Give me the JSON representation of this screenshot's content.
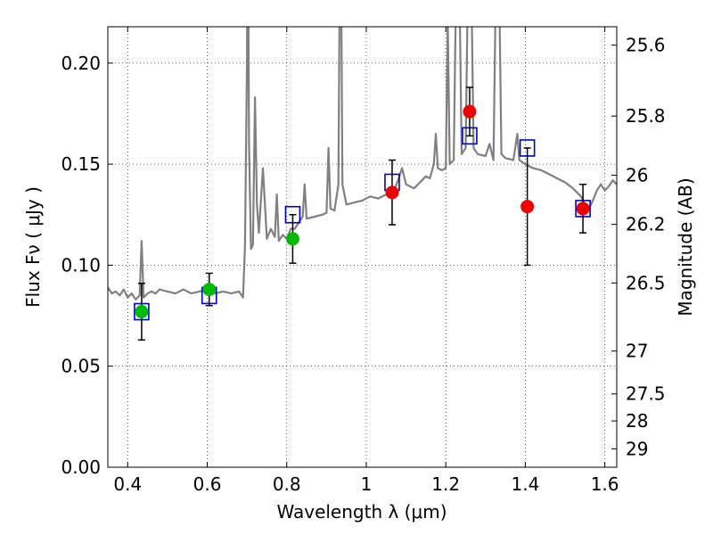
{
  "chart_data": {
    "type": "scatter",
    "xlabel": "Wavelength  λ (μm)",
    "ylabel": "Flux  Fν  ( μJy )",
    "y2label": "Magnitude (AB)",
    "xlim": [
      0.35,
      1.63
    ],
    "ylim": [
      0.0,
      0.218
    ],
    "grid": true,
    "x_ticks": [
      0.4,
      0.6,
      0.8,
      1.0,
      1.2,
      1.4,
      1.6
    ],
    "x_tick_labels": [
      "0.4",
      "0.6",
      "0.8",
      "1",
      "1.2",
      "1.4",
      "1.6"
    ],
    "y_ticks": [
      0.0,
      0.05,
      0.1,
      0.15,
      0.2
    ],
    "y_tick_labels": [
      "0.00",
      "0.05",
      "0.10",
      "0.15",
      "0.20"
    ],
    "mag_ticks": [
      {
        "label": "25.6",
        "flux": 0.2089
      },
      {
        "label": "25.8",
        "flux": 0.1738
      },
      {
        "label": "26",
        "flux": 0.1445
      },
      {
        "label": "26.2",
        "flux": 0.1202
      },
      {
        "label": "26.5",
        "flux": 0.0912
      },
      {
        "label": "27",
        "flux": 0.0575
      },
      {
        "label": "27.5",
        "flux": 0.0363
      },
      {
        "label": "28",
        "flux": 0.0229
      },
      {
        "label": "29",
        "flux": 0.0091
      }
    ],
    "series": [
      {
        "kind": "line",
        "color": "#808080",
        "points": [
          [
            0.35,
            0.089
          ],
          [
            0.36,
            0.086
          ],
          [
            0.37,
            0.087
          ],
          [
            0.38,
            0.085
          ],
          [
            0.39,
            0.088
          ],
          [
            0.4,
            0.084
          ],
          [
            0.41,
            0.086
          ],
          [
            0.42,
            0.083
          ],
          [
            0.43,
            0.085
          ],
          [
            0.435,
            0.112
          ],
          [
            0.44,
            0.084
          ],
          [
            0.45,
            0.086
          ],
          [
            0.46,
            0.087
          ],
          [
            0.47,
            0.086
          ],
          [
            0.48,
            0.088
          ],
          [
            0.5,
            0.087
          ],
          [
            0.52,
            0.086
          ],
          [
            0.54,
            0.088
          ],
          [
            0.56,
            0.086
          ],
          [
            0.58,
            0.087
          ],
          [
            0.6,
            0.088
          ],
          [
            0.62,
            0.086
          ],
          [
            0.64,
            0.087
          ],
          [
            0.66,
            0.086
          ],
          [
            0.68,
            0.087
          ],
          [
            0.69,
            0.084
          ],
          [
            0.695,
            0.11
          ],
          [
            0.7,
            0.2
          ],
          [
            0.702,
            0.3
          ],
          [
            0.705,
            0.16
          ],
          [
            0.71,
            0.108
          ],
          [
            0.715,
            0.11
          ],
          [
            0.72,
            0.183
          ],
          [
            0.725,
            0.13
          ],
          [
            0.73,
            0.116
          ],
          [
            0.74,
            0.148
          ],
          [
            0.75,
            0.113
          ],
          [
            0.76,
            0.118
          ],
          [
            0.77,
            0.114
          ],
          [
            0.775,
            0.135
          ],
          [
            0.78,
            0.112
          ],
          [
            0.79,
            0.115
          ],
          [
            0.8,
            0.113
          ],
          [
            0.81,
            0.118
          ],
          [
            0.82,
            0.118
          ],
          [
            0.83,
            0.121
          ],
          [
            0.84,
            0.124
          ],
          [
            0.845,
            0.14
          ],
          [
            0.85,
            0.123
          ],
          [
            0.87,
            0.124
          ],
          [
            0.89,
            0.125
          ],
          [
            0.9,
            0.126
          ],
          [
            0.905,
            0.158
          ],
          [
            0.91,
            0.128
          ],
          [
            0.92,
            0.127
          ],
          [
            0.93,
            0.14
          ],
          [
            0.935,
            0.3
          ],
          [
            0.94,
            0.14
          ],
          [
            0.95,
            0.13
          ],
          [
            0.97,
            0.131
          ],
          [
            0.99,
            0.132
          ],
          [
            1.01,
            0.134
          ],
          [
            1.03,
            0.133
          ],
          [
            1.05,
            0.135
          ],
          [
            1.07,
            0.137
          ],
          [
            1.08,
            0.142
          ],
          [
            1.09,
            0.148
          ],
          [
            1.1,
            0.14
          ],
          [
            1.11,
            0.139
          ],
          [
            1.12,
            0.138
          ],
          [
            1.13,
            0.14
          ],
          [
            1.14,
            0.142
          ],
          [
            1.15,
            0.144
          ],
          [
            1.16,
            0.143
          ],
          [
            1.17,
            0.15
          ],
          [
            1.175,
            0.165
          ],
          [
            1.18,
            0.148
          ],
          [
            1.19,
            0.147
          ],
          [
            1.2,
            0.148
          ],
          [
            1.205,
            0.22
          ],
          [
            1.21,
            0.15
          ],
          [
            1.22,
            0.152
          ],
          [
            1.23,
            0.3
          ],
          [
            1.24,
            0.155
          ],
          [
            1.25,
            0.158
          ],
          [
            1.26,
            0.3
          ],
          [
            1.27,
            0.158
          ],
          [
            1.28,
            0.155
          ],
          [
            1.3,
            0.154
          ],
          [
            1.31,
            0.16
          ],
          [
            1.32,
            0.152
          ],
          [
            1.33,
            0.3
          ],
          [
            1.34,
            0.155
          ],
          [
            1.35,
            0.153
          ],
          [
            1.37,
            0.152
          ],
          [
            1.38,
            0.165
          ],
          [
            1.385,
            0.152
          ],
          [
            1.4,
            0.15
          ],
          [
            1.42,
            0.148
          ],
          [
            1.44,
            0.147
          ],
          [
            1.46,
            0.145
          ],
          [
            1.48,
            0.143
          ],
          [
            1.5,
            0.141
          ],
          [
            1.52,
            0.138
          ],
          [
            1.54,
            0.134
          ],
          [
            1.55,
            0.13
          ],
          [
            1.56,
            0.128
          ],
          [
            1.57,
            0.132
          ],
          [
            1.58,
            0.137
          ],
          [
            1.59,
            0.14
          ],
          [
            1.6,
            0.137
          ],
          [
            1.61,
            0.139
          ],
          [
            1.62,
            0.142
          ],
          [
            1.63,
            0.14
          ]
        ]
      },
      {
        "kind": "markers",
        "marker": "square",
        "color": "#0000cc",
        "points": [
          [
            0.435,
            0.077
          ],
          [
            0.605,
            0.085
          ],
          [
            0.815,
            0.125
          ],
          [
            1.065,
            0.141
          ],
          [
            1.26,
            0.164
          ],
          [
            1.405,
            0.158
          ],
          [
            1.545,
            0.128
          ]
        ]
      },
      {
        "kind": "markers",
        "marker": "circle",
        "color": "#00bb00",
        "points": [
          [
            0.435,
            0.077
          ],
          [
            0.605,
            0.088
          ],
          [
            0.815,
            0.113
          ]
        ],
        "yerr_low": [
          0.014,
          0.008,
          0.012
        ],
        "yerr_high": [
          0.014,
          0.008,
          0.012
        ]
      },
      {
        "kind": "markers",
        "marker": "circle",
        "color": "#ee0000",
        "points": [
          [
            1.065,
            0.136
          ],
          [
            1.26,
            0.176
          ],
          [
            1.405,
            0.129
          ],
          [
            1.545,
            0.128
          ]
        ],
        "yerr_low": [
          0.016,
          0.012,
          0.029,
          0.012
        ],
        "yerr_high": [
          0.016,
          0.012,
          0.029,
          0.012
        ]
      }
    ]
  }
}
